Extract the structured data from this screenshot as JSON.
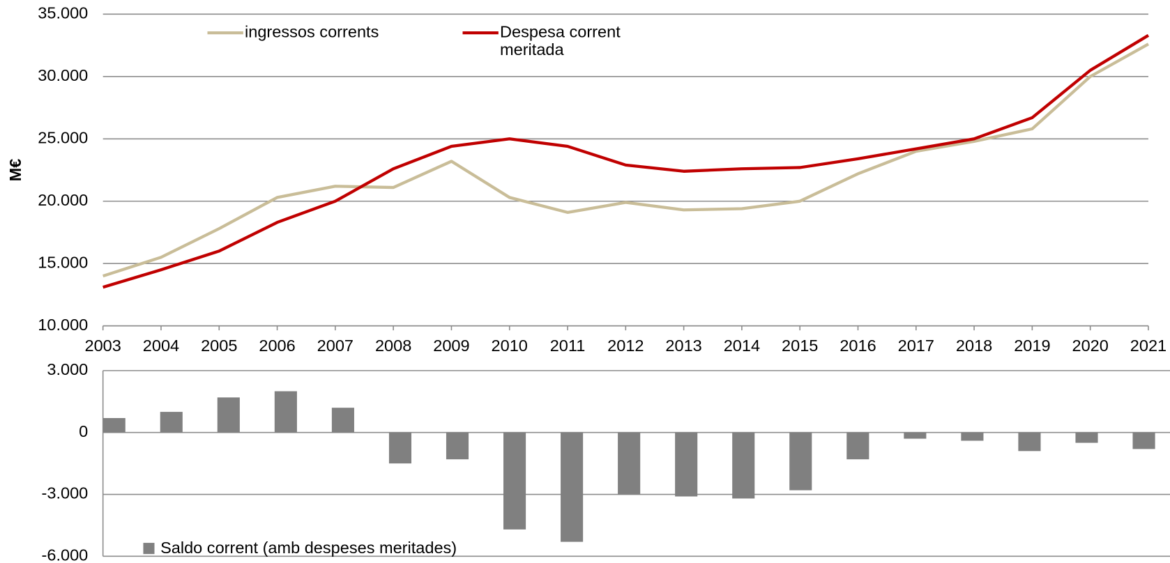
{
  "chart_data": [
    {
      "type": "line",
      "y_label": "M€",
      "categories": [
        "2003",
        "2004",
        "2005",
        "2006",
        "2007",
        "2008",
        "2009",
        "2010",
        "2011",
        "2012",
        "2013",
        "2014",
        "2015",
        "2016",
        "2017",
        "2018",
        "2019",
        "2020",
        "2021"
      ],
      "series": [
        {
          "name": "ingressos corrents",
          "color": "#c9bd98",
          "values": [
            14000,
            15500,
            17800,
            20300,
            21200,
            21100,
            23200,
            20300,
            19100,
            19900,
            19300,
            19400,
            20000,
            22200,
            24000,
            24800,
            25800,
            30000,
            32600
          ]
        },
        {
          "name": "Despesa corrent meritada",
          "color": "#c00000",
          "values": [
            13100,
            14500,
            16000,
            18300,
            20000,
            22600,
            24400,
            25000,
            24400,
            22900,
            22400,
            22600,
            22700,
            23400,
            24200,
            25000,
            26700,
            30500,
            33300
          ]
        }
      ],
      "ylim": [
        10000,
        35000
      ],
      "yticks": [
        {
          "value": 10000,
          "label": "10.000"
        },
        {
          "value": 15000,
          "label": "15.000"
        },
        {
          "value": 20000,
          "label": "20.000"
        },
        {
          "value": 25000,
          "label": "25.000"
        },
        {
          "value": 30000,
          "label": "30.000"
        },
        {
          "value": 35000,
          "label": "35.000"
        }
      ],
      "grid": true
    },
    {
      "type": "bar",
      "series": [
        {
          "name": "Saldo corrent (amb despeses meritades)",
          "color": "#808080",
          "values": [
            700,
            1000,
            1700,
            2000,
            1200,
            -1500,
            -1300,
            -4700,
            -5300,
            -3000,
            -3100,
            -3200,
            -2800,
            -1300,
            -300,
            -400,
            -900,
            -500,
            -800
          ]
        }
      ],
      "ylim": [
        -6000,
        3000
      ],
      "yticks": [
        {
          "value": -6000,
          "label": "-6.000"
        },
        {
          "value": -3000,
          "label": "-3.000"
        },
        0,
        {
          "value": 3000,
          "label": "3.000"
        }
      ],
      "grid": true
    }
  ]
}
